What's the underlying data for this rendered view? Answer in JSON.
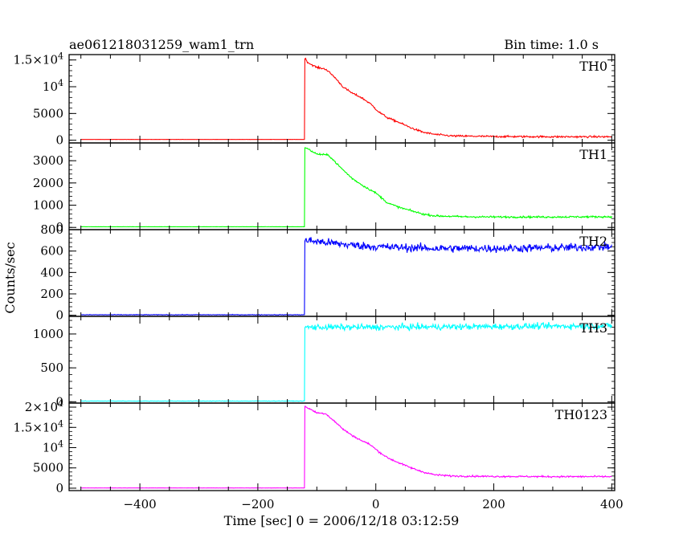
{
  "header": {
    "title": "ae061218031259_wam1_trn",
    "bin_time": "Bin time: 1.0 s"
  },
  "xlabel": "Time [sec] 0 = 2006/12/18 03:12:59",
  "ylabel": "Counts/sec",
  "chart_data": {
    "type": "line",
    "x_range": [
      -520,
      405
    ],
    "x_ticks": [
      -400,
      -200,
      0,
      200,
      400
    ],
    "x_tick_labels": [
      "−400",
      "−200",
      "0",
      "200",
      "400"
    ],
    "panels": [
      {
        "name": "TH0",
        "color": "#ff0000",
        "ylim": [
          -500,
          16000
        ],
        "yticks": [
          {
            "v": 0,
            "label": "0"
          },
          {
            "v": 5000,
            "label": "5000"
          },
          {
            "v": 10000,
            "label": "10^4"
          },
          {
            "v": 15000,
            "label": "1.5×10^4"
          }
        ],
        "data_start": -500,
        "data_end": 400,
        "onset": -120,
        "profile": [
          [
            -500,
            150
          ],
          [
            -121,
            150
          ],
          [
            -120,
            15300
          ],
          [
            -115,
            14500
          ],
          [
            -100,
            13600
          ],
          [
            -85,
            13300
          ],
          [
            -70,
            11800
          ],
          [
            -55,
            9900
          ],
          [
            -40,
            8800
          ],
          [
            -25,
            8000
          ],
          [
            -10,
            6900
          ],
          [
            5,
            5300
          ],
          [
            20,
            4200
          ],
          [
            40,
            3300
          ],
          [
            60,
            2300
          ],
          [
            80,
            1500
          ],
          [
            100,
            1100
          ],
          [
            130,
            800
          ],
          [
            200,
            700
          ],
          [
            300,
            650
          ],
          [
            400,
            650
          ]
        ],
        "noise": 250
      },
      {
        "name": "TH1",
        "color": "#00ff00",
        "ylim": [
          -100,
          3800
        ],
        "yticks": [
          {
            "v": 0,
            "label": "0"
          },
          {
            "v": 1000,
            "label": "1000"
          },
          {
            "v": 2000,
            "label": "2000"
          },
          {
            "v": 3000,
            "label": "3000"
          }
        ],
        "data_start": -500,
        "data_end": 400,
        "onset": -120,
        "profile": [
          [
            -500,
            30
          ],
          [
            -121,
            30
          ],
          [
            -120,
            3600
          ],
          [
            -110,
            3450
          ],
          [
            -100,
            3300
          ],
          [
            -80,
            3250
          ],
          [
            -60,
            2700
          ],
          [
            -40,
            2200
          ],
          [
            -20,
            1850
          ],
          [
            0,
            1550
          ],
          [
            20,
            1100
          ],
          [
            40,
            900
          ],
          [
            60,
            750
          ],
          [
            80,
            600
          ],
          [
            100,
            520
          ],
          [
            150,
            480
          ],
          [
            200,
            470
          ],
          [
            300,
            470
          ],
          [
            400,
            480
          ]
        ],
        "noise": 60
      },
      {
        "name": "TH2",
        "color": "#0000ff",
        "ylim": [
          -10,
          800
        ],
        "yticks": [
          {
            "v": 0,
            "label": "0"
          },
          {
            "v": 200,
            "label": "200"
          },
          {
            "v": 400,
            "label": "400"
          },
          {
            "v": 600,
            "label": "600"
          },
          {
            "v": 800,
            "label": "800"
          }
        ],
        "data_start": -500,
        "data_end": 400,
        "onset": -120,
        "profile": [
          [
            -500,
            5
          ],
          [
            -121,
            5
          ],
          [
            -120,
            700
          ],
          [
            -100,
            690
          ],
          [
            -50,
            660
          ],
          [
            0,
            640
          ],
          [
            100,
            625
          ],
          [
            200,
            625
          ],
          [
            300,
            630
          ],
          [
            400,
            640
          ]
        ],
        "noise": 55
      },
      {
        "name": "TH3",
        "color": "#00ffff",
        "ylim": [
          -20,
          1260
        ],
        "yticks": [
          {
            "v": 0,
            "label": "0"
          },
          {
            "v": 500,
            "label": "500"
          },
          {
            "v": 1000,
            "label": "1000"
          }
        ],
        "data_start": -500,
        "data_end": 400,
        "onset": -120,
        "profile": [
          [
            -500,
            10
          ],
          [
            -121,
            10
          ],
          [
            -120,
            1100
          ],
          [
            0,
            1100
          ],
          [
            200,
            1110
          ],
          [
            400,
            1120
          ]
        ],
        "noise": 65
      },
      {
        "name": "TH0123",
        "color": "#ff00ff",
        "ylim": [
          -600,
          21000
        ],
        "yticks": [
          {
            "v": 0,
            "label": "0"
          },
          {
            "v": 5000,
            "label": "5000"
          },
          {
            "v": 10000,
            "label": "10^4"
          },
          {
            "v": 15000,
            "label": "1.5×10^4"
          },
          {
            "v": 20000,
            "label": "2×10^4"
          }
        ],
        "data_start": -500,
        "data_end": 400,
        "onset": -120,
        "profile": [
          [
            -500,
            50
          ],
          [
            -121,
            50
          ],
          [
            -120,
            20200
          ],
          [
            -110,
            19400
          ],
          [
            -100,
            18600
          ],
          [
            -85,
            18400
          ],
          [
            -70,
            16500
          ],
          [
            -55,
            14500
          ],
          [
            -40,
            13000
          ],
          [
            -25,
            11800
          ],
          [
            -10,
            10800
          ],
          [
            5,
            9000
          ],
          [
            20,
            7500
          ],
          [
            40,
            6200
          ],
          [
            60,
            5000
          ],
          [
            80,
            4000
          ],
          [
            100,
            3300
          ],
          [
            130,
            3000
          ],
          [
            200,
            2900
          ],
          [
            300,
            2850
          ],
          [
            400,
            2850
          ]
        ],
        "noise": 300
      }
    ]
  }
}
